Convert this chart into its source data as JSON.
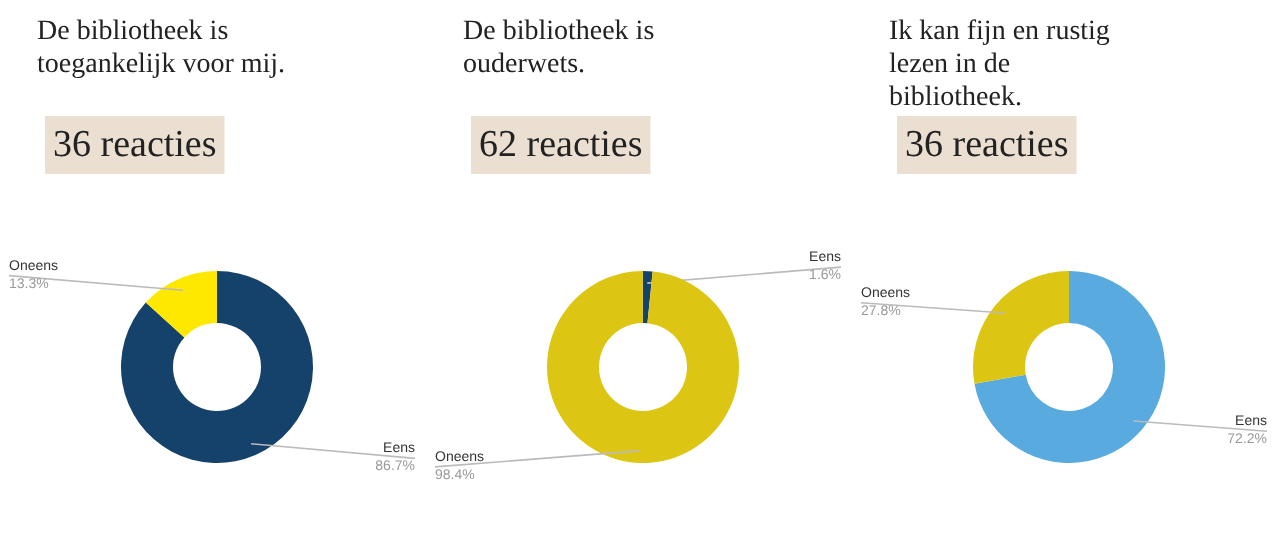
{
  "chart_data": [
    {
      "type": "donut",
      "title": "De bibliotheek is toegankelijk voor mij.",
      "subtitle": "36 reacties",
      "categories": [
        "Eens",
        "Oneens"
      ],
      "values": [
        86.7,
        13.3
      ],
      "value_labels": [
        "86.7%",
        "13.3%"
      ],
      "colors": [
        "#15426a",
        "#ffe800"
      ]
    },
    {
      "type": "donut",
      "title": "De bibliotheek is ouderwets.",
      "subtitle": "62 reacties",
      "categories": [
        "Eens",
        "Oneens"
      ],
      "values": [
        1.6,
        98.4
      ],
      "value_labels": [
        "1.6%",
        "98.4%"
      ],
      "colors": [
        "#15426a",
        "#dcc613"
      ]
    },
    {
      "type": "donut",
      "title": "Ik kan fijn en rustig lezen in de bibliotheek.",
      "subtitle": "36 reacties",
      "categories": [
        "Eens",
        "Oneens"
      ],
      "values": [
        72.2,
        27.8
      ],
      "value_labels": [
        "72.2%",
        "27.8%"
      ],
      "colors": [
        "#58aadf",
        "#dcc613"
      ]
    }
  ]
}
